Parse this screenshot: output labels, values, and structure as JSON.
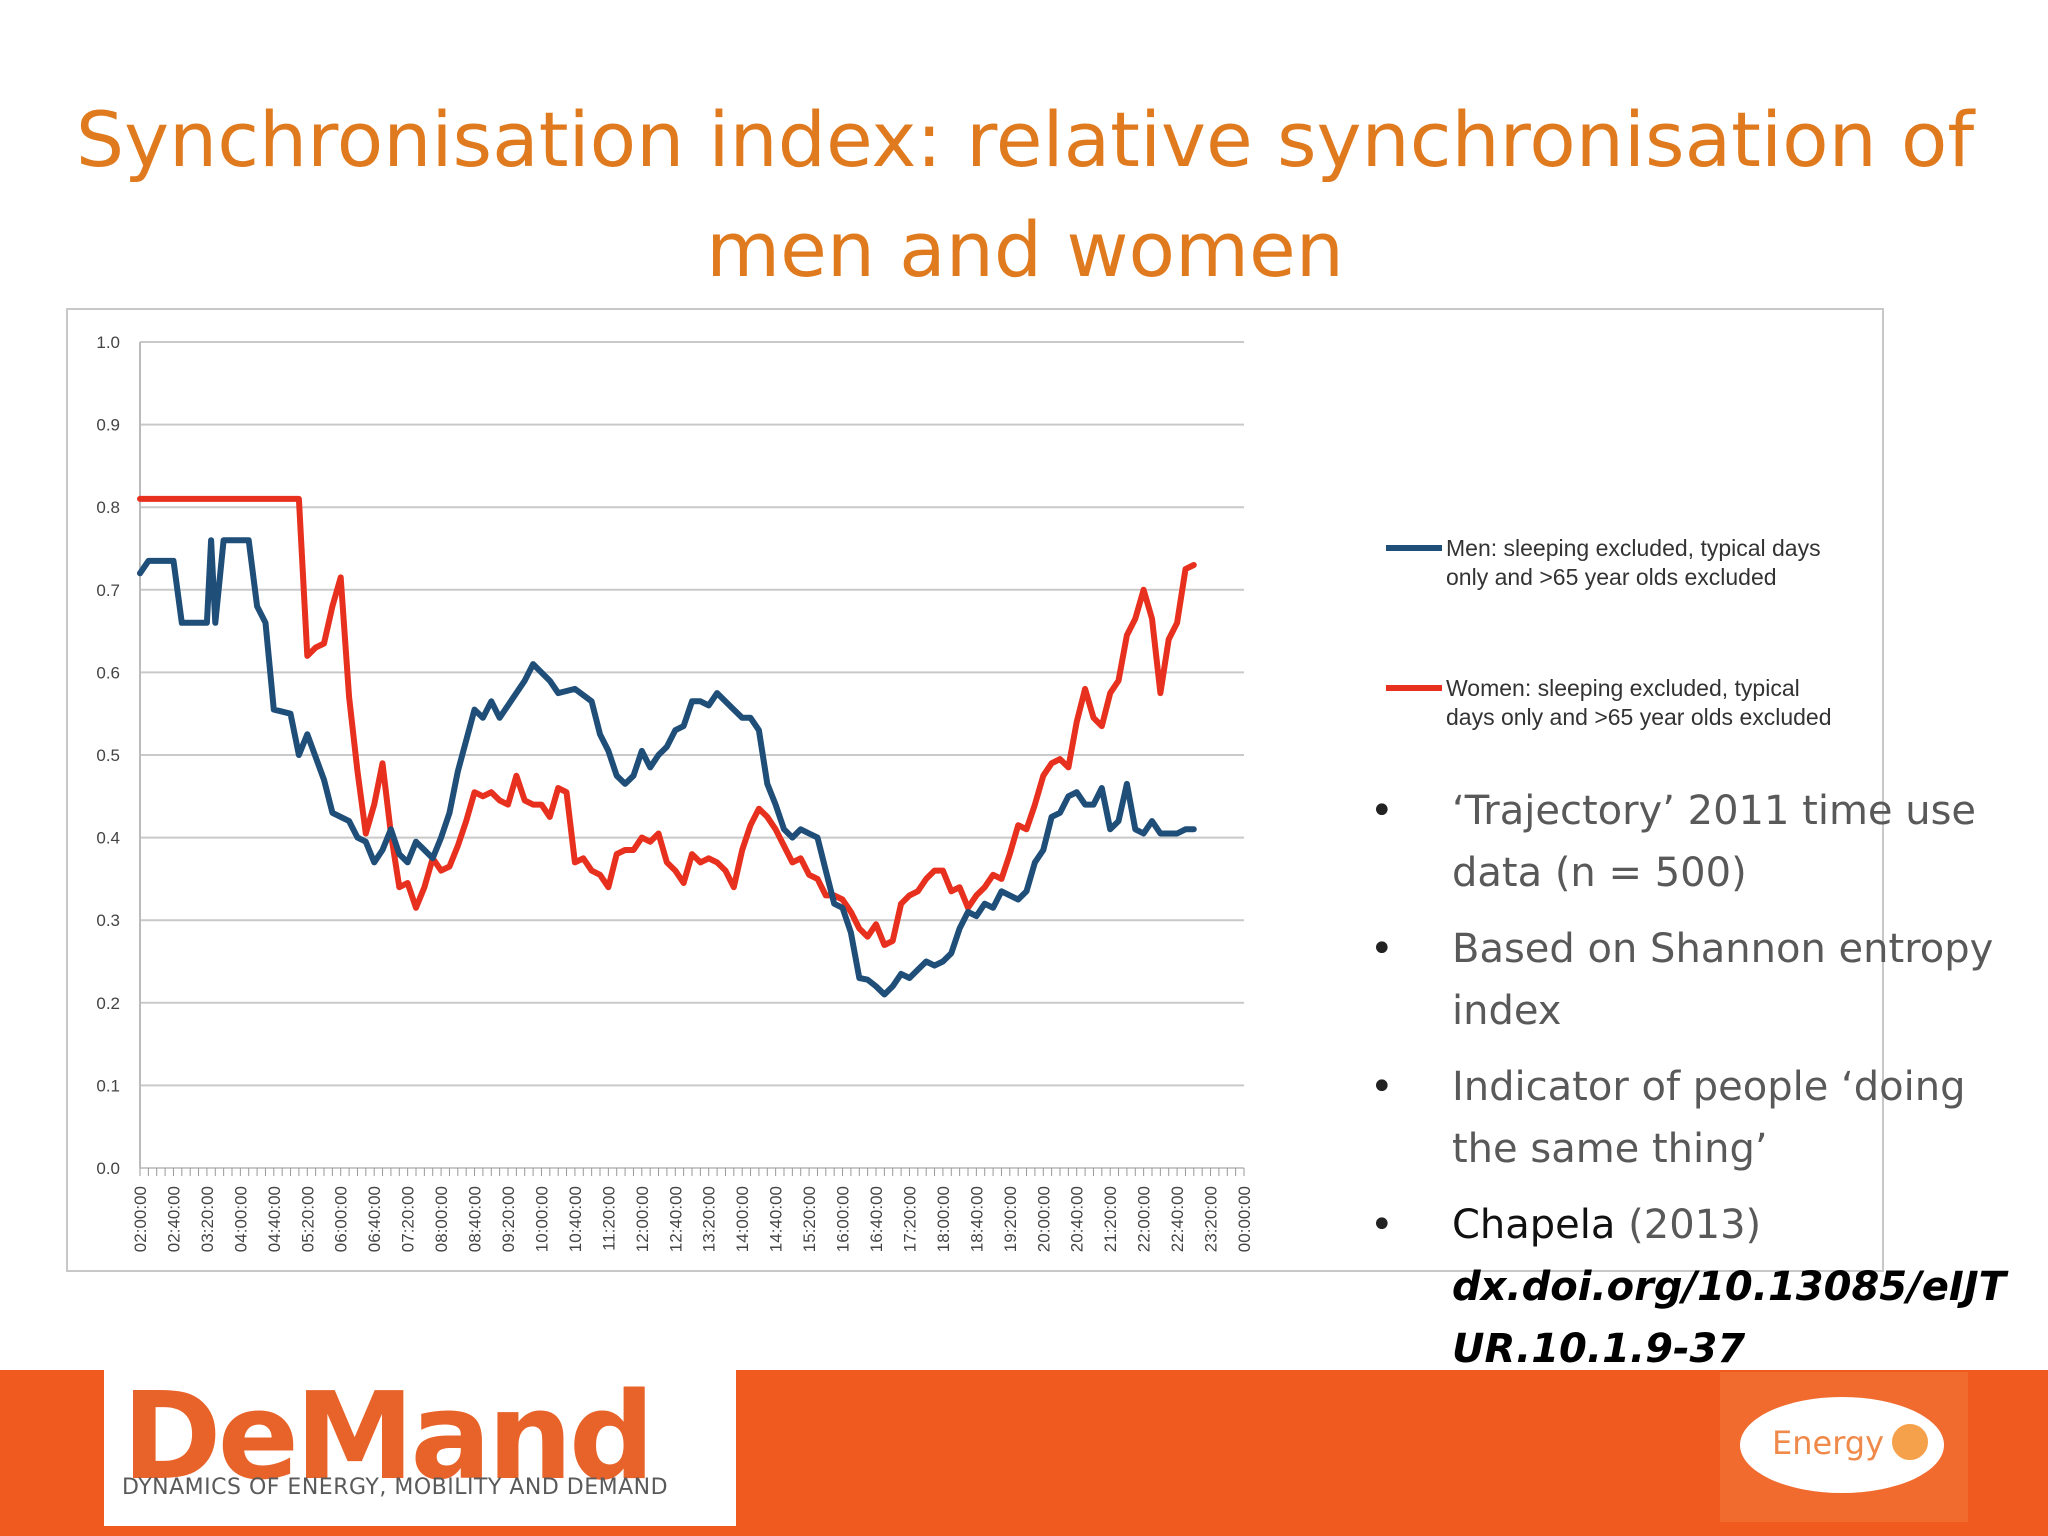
{
  "slide": {
    "title": "Synchronisation index: relative synchronisation of men and women"
  },
  "bullets": [
    {
      "text": "‘Trajectory’ 2011 time use data (n = 500)"
    },
    {
      "text": "Based on Shannon entropy index"
    },
    {
      "text": "Indicator of people ‘doing the same thing’"
    },
    {
      "author": "Chapela",
      "year": " (2013)",
      "doi": "dx.doi.org/10.13085/eIJTUR.10.1.9-37"
    }
  ],
  "logo": {
    "word": "DeMand",
    "tagline": "DYNAMICS OF ENERGY, MOBILITY AND DEMAND"
  },
  "energy_logo": {
    "word": "Energy"
  },
  "colors": {
    "title": "#e07a1f",
    "men": "#1f4e79",
    "women": "#e8301e",
    "footer": "#f05a1e"
  },
  "chart_data": {
    "type": "line",
    "title": "",
    "xlabel": "",
    "ylabel": "",
    "ylim": [
      0,
      1
    ],
    "yticks": [
      "0.0",
      "0.1",
      "0.2",
      "0.3",
      "0.4",
      "0.5",
      "0.6",
      "0.7",
      "0.8",
      "0.9",
      "1.0"
    ],
    "xticks": [
      "02:00:00",
      "02:40:00",
      "03:20:00",
      "04:00:00",
      "04:40:00",
      "05:20:00",
      "06:00:00",
      "06:40:00",
      "07:20:00",
      "08:00:00",
      "08:40:00",
      "09:20:00",
      "10:00:00",
      "10:40:00",
      "11:20:00",
      "12:00:00",
      "12:40:00",
      "13:20:00",
      "14:00:00",
      "14:40:00",
      "15:20:00",
      "16:00:00",
      "16:40:00",
      "17:20:00",
      "18:00:00",
      "18:40:00",
      "19:20:00",
      "20:00:00",
      "20:40:00",
      "21:20:00",
      "22:00:00",
      "22:40:00",
      "23:20:00",
      "00:00:00"
    ],
    "grid": true,
    "legend": "right",
    "series": [
      {
        "name": "Men: sleeping excluded, typical days only and >65 year olds excluded",
        "points": [
          [
            "02:00:00",
            0.72
          ],
          [
            "02:10:00",
            0.735
          ],
          [
            "02:40:00",
            0.735
          ],
          [
            "02:50:00",
            0.66
          ],
          [
            "03:10:00",
            0.66
          ],
          [
            "03:20:00",
            0.66
          ],
          [
            "03:25:00",
            0.76
          ],
          [
            "03:30:00",
            0.66
          ],
          [
            "03:40:00",
            0.76
          ],
          [
            "04:10:00",
            0.76
          ],
          [
            "04:20:00",
            0.68
          ],
          [
            "04:30:00",
            0.66
          ],
          [
            "04:40:00",
            0.555
          ],
          [
            "05:00:00",
            0.55
          ],
          [
            "05:10:00",
            0.5
          ],
          [
            "05:20:00",
            0.525
          ],
          [
            "05:40:00",
            0.47
          ],
          [
            "05:50:00",
            0.43
          ],
          [
            "06:10:00",
            0.42
          ],
          [
            "06:20:00",
            0.4
          ],
          [
            "06:30:00",
            0.395
          ],
          [
            "06:40:00",
            0.37
          ],
          [
            "06:50:00",
            0.385
          ],
          [
            "07:00:00",
            0.41
          ],
          [
            "07:10:00",
            0.38
          ],
          [
            "07:20:00",
            0.37
          ],
          [
            "07:30:00",
            0.395
          ],
          [
            "07:40:00",
            0.385
          ],
          [
            "07:50:00",
            0.375
          ],
          [
            "08:00:00",
            0.4
          ],
          [
            "08:10:00",
            0.43
          ],
          [
            "08:20:00",
            0.48
          ],
          [
            "08:40:00",
            0.555
          ],
          [
            "08:50:00",
            0.545
          ],
          [
            "09:00:00",
            0.565
          ],
          [
            "09:10:00",
            0.545
          ],
          [
            "09:20:00",
            0.56
          ],
          [
            "09:40:00",
            0.59
          ],
          [
            "09:50:00",
            0.61
          ],
          [
            "10:10:00",
            0.59
          ],
          [
            "10:20:00",
            0.575
          ],
          [
            "10:40:00",
            0.58
          ],
          [
            "11:00:00",
            0.565
          ],
          [
            "11:10:00",
            0.525
          ],
          [
            "11:20:00",
            0.505
          ],
          [
            "11:30:00",
            0.475
          ],
          [
            "11:40:00",
            0.465
          ],
          [
            "11:50:00",
            0.475
          ],
          [
            "12:00:00",
            0.505
          ],
          [
            "12:10:00",
            0.485
          ],
          [
            "12:20:00",
            0.5
          ],
          [
            "12:30:00",
            0.51
          ],
          [
            "12:40:00",
            0.53
          ],
          [
            "12:50:00",
            0.535
          ],
          [
            "13:00:00",
            0.565
          ],
          [
            "13:10:00",
            0.565
          ],
          [
            "13:20:00",
            0.56
          ],
          [
            "13:30:00",
            0.575
          ],
          [
            "13:50:00",
            0.555
          ],
          [
            "14:00:00",
            0.545
          ],
          [
            "14:10:00",
            0.545
          ],
          [
            "14:20:00",
            0.53
          ],
          [
            "14:30:00",
            0.465
          ],
          [
            "14:40:00",
            0.44
          ],
          [
            "14:50:00",
            0.41
          ],
          [
            "15:00:00",
            0.4
          ],
          [
            "15:10:00",
            0.41
          ],
          [
            "15:20:00",
            0.405
          ],
          [
            "15:30:00",
            0.4
          ],
          [
            "15:40:00",
            0.36
          ],
          [
            "15:50:00",
            0.32
          ],
          [
            "16:00:00",
            0.315
          ],
          [
            "16:10:00",
            0.285
          ],
          [
            "16:20:00",
            0.23
          ],
          [
            "16:30:00",
            0.228
          ],
          [
            "16:40:00",
            0.22
          ],
          [
            "16:50:00",
            0.21
          ],
          [
            "17:00:00",
            0.22
          ],
          [
            "17:10:00",
            0.235
          ],
          [
            "17:20:00",
            0.23
          ],
          [
            "17:30:00",
            0.24
          ],
          [
            "17:40:00",
            0.25
          ],
          [
            "17:50:00",
            0.245
          ],
          [
            "18:00:00",
            0.25
          ],
          [
            "18:10:00",
            0.26
          ],
          [
            "18:20:00",
            0.29
          ],
          [
            "18:30:00",
            0.31
          ],
          [
            "18:40:00",
            0.305
          ],
          [
            "18:50:00",
            0.32
          ],
          [
            "19:00:00",
            0.315
          ],
          [
            "19:10:00",
            0.335
          ],
          [
            "19:20:00",
            0.33
          ],
          [
            "19:30:00",
            0.325
          ],
          [
            "19:40:00",
            0.335
          ],
          [
            "19:50:00",
            0.37
          ],
          [
            "20:00:00",
            0.385
          ],
          [
            "20:10:00",
            0.425
          ],
          [
            "20:20:00",
            0.43
          ],
          [
            "20:30:00",
            0.45
          ],
          [
            "20:40:00",
            0.455
          ],
          [
            "20:50:00",
            0.44
          ],
          [
            "21:00:00",
            0.44
          ],
          [
            "21:10:00",
            0.46
          ],
          [
            "21:20:00",
            0.41
          ],
          [
            "21:30:00",
            0.42
          ],
          [
            "21:40:00",
            0.465
          ],
          [
            "21:50:00",
            0.41
          ],
          [
            "22:00:00",
            0.405
          ],
          [
            "22:10:00",
            0.42
          ],
          [
            "22:20:00",
            0.405
          ],
          [
            "22:30:00",
            0.405
          ],
          [
            "22:40:00",
            0.405
          ],
          [
            "22:50:00",
            0.41
          ],
          [
            "23:00:00",
            0.41
          ]
        ]
      },
      {
        "name": "Women: sleeping excluded, typical days only and >65 year olds excluded",
        "points": [
          [
            "02:00:00",
            0.81
          ],
          [
            "05:10:00",
            0.81
          ],
          [
            "05:20:00",
            0.62
          ],
          [
            "05:30:00",
            0.63
          ],
          [
            "05:40:00",
            0.635
          ],
          [
            "05:50:00",
            0.68
          ],
          [
            "06:00:00",
            0.715
          ],
          [
            "06:10:00",
            0.57
          ],
          [
            "06:20:00",
            0.48
          ],
          [
            "06:30:00",
            0.405
          ],
          [
            "06:40:00",
            0.44
          ],
          [
            "06:50:00",
            0.49
          ],
          [
            "07:00:00",
            0.405
          ],
          [
            "07:10:00",
            0.34
          ],
          [
            "07:20:00",
            0.345
          ],
          [
            "07:30:00",
            0.315
          ],
          [
            "07:40:00",
            0.34
          ],
          [
            "07:50:00",
            0.375
          ],
          [
            "08:00:00",
            0.36
          ],
          [
            "08:10:00",
            0.365
          ],
          [
            "08:20:00",
            0.39
          ],
          [
            "08:30:00",
            0.42
          ],
          [
            "08:40:00",
            0.455
          ],
          [
            "08:50:00",
            0.45
          ],
          [
            "09:00:00",
            0.455
          ],
          [
            "09:10:00",
            0.445
          ],
          [
            "09:20:00",
            0.44
          ],
          [
            "09:30:00",
            0.475
          ],
          [
            "09:40:00",
            0.445
          ],
          [
            "09:50:00",
            0.44
          ],
          [
            "10:00:00",
            0.44
          ],
          [
            "10:10:00",
            0.425
          ],
          [
            "10:20:00",
            0.46
          ],
          [
            "10:30:00",
            0.455
          ],
          [
            "10:40:00",
            0.37
          ],
          [
            "10:50:00",
            0.375
          ],
          [
            "11:00:00",
            0.36
          ],
          [
            "11:10:00",
            0.355
          ],
          [
            "11:20:00",
            0.34
          ],
          [
            "11:30:00",
            0.38
          ],
          [
            "11:40:00",
            0.385
          ],
          [
            "11:50:00",
            0.385
          ],
          [
            "12:00:00",
            0.4
          ],
          [
            "12:10:00",
            0.395
          ],
          [
            "12:20:00",
            0.405
          ],
          [
            "12:30:00",
            0.37
          ],
          [
            "12:40:00",
            0.36
          ],
          [
            "12:50:00",
            0.345
          ],
          [
            "13:00:00",
            0.38
          ],
          [
            "13:10:00",
            0.37
          ],
          [
            "13:20:00",
            0.375
          ],
          [
            "13:30:00",
            0.37
          ],
          [
            "13:40:00",
            0.36
          ],
          [
            "13:50:00",
            0.34
          ],
          [
            "14:00:00",
            0.385
          ],
          [
            "14:10:00",
            0.415
          ],
          [
            "14:20:00",
            0.435
          ],
          [
            "14:30:00",
            0.425
          ],
          [
            "14:40:00",
            0.41
          ],
          [
            "14:50:00",
            0.39
          ],
          [
            "15:00:00",
            0.37
          ],
          [
            "15:10:00",
            0.375
          ],
          [
            "15:20:00",
            0.355
          ],
          [
            "15:30:00",
            0.35
          ],
          [
            "15:40:00",
            0.33
          ],
          [
            "15:50:00",
            0.33
          ],
          [
            "16:00:00",
            0.325
          ],
          [
            "16:10:00",
            0.31
          ],
          [
            "16:20:00",
            0.29
          ],
          [
            "16:30:00",
            0.28
          ],
          [
            "16:40:00",
            0.295
          ],
          [
            "16:50:00",
            0.27
          ],
          [
            "17:00:00",
            0.275
          ],
          [
            "17:10:00",
            0.32
          ],
          [
            "17:20:00",
            0.33
          ],
          [
            "17:30:00",
            0.335
          ],
          [
            "17:40:00",
            0.35
          ],
          [
            "17:50:00",
            0.36
          ],
          [
            "18:00:00",
            0.36
          ],
          [
            "18:10:00",
            0.335
          ],
          [
            "18:20:00",
            0.34
          ],
          [
            "18:30:00",
            0.315
          ],
          [
            "18:40:00",
            0.33
          ],
          [
            "18:50:00",
            0.34
          ],
          [
            "19:00:00",
            0.355
          ],
          [
            "19:10:00",
            0.35
          ],
          [
            "19:20:00",
            0.38
          ],
          [
            "19:30:00",
            0.415
          ],
          [
            "19:40:00",
            0.41
          ],
          [
            "19:50:00",
            0.44
          ],
          [
            "20:00:00",
            0.475
          ],
          [
            "20:10:00",
            0.49
          ],
          [
            "20:20:00",
            0.495
          ],
          [
            "20:30:00",
            0.485
          ],
          [
            "20:40:00",
            0.54
          ],
          [
            "20:50:00",
            0.58
          ],
          [
            "21:00:00",
            0.545
          ],
          [
            "21:10:00",
            0.535
          ],
          [
            "21:20:00",
            0.575
          ],
          [
            "21:30:00",
            0.59
          ],
          [
            "21:40:00",
            0.645
          ],
          [
            "21:50:00",
            0.665
          ],
          [
            "22:00:00",
            0.7
          ],
          [
            "22:10:00",
            0.665
          ],
          [
            "22:20:00",
            0.575
          ],
          [
            "22:30:00",
            0.64
          ],
          [
            "22:40:00",
            0.66
          ],
          [
            "22:50:00",
            0.725
          ],
          [
            "23:00:00",
            0.73
          ]
        ]
      }
    ]
  }
}
